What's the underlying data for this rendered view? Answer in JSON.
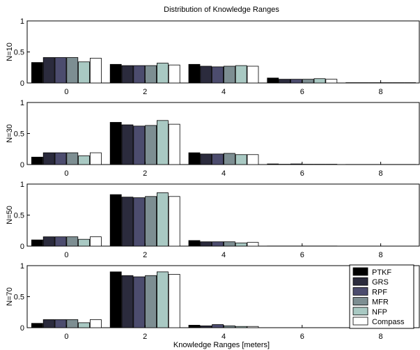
{
  "chart_data": {
    "type": "bar",
    "title": "Distribution of Knowledge Ranges",
    "xlabel": "Knowledge Ranges [meters]",
    "categories": [
      "0",
      "2",
      "4",
      "6",
      "8"
    ],
    "ylim": [
      0,
      1
    ],
    "yticks": [
      "0",
      "0.5",
      "1"
    ],
    "grid": false,
    "legend_position": "bottom-right",
    "series": [
      {
        "name": "PTKF",
        "color": "#000000"
      },
      {
        "name": "GRS",
        "color": "#2b2b3d"
      },
      {
        "name": "RPF",
        "color": "#4c4c6e"
      },
      {
        "name": "MFR",
        "color": "#7d8e92"
      },
      {
        "name": "NFP",
        "color": "#a9c9c3"
      },
      {
        "name": "Compass",
        "color": "#ffffff"
      }
    ],
    "panels": [
      {
        "ylabel": "N=10",
        "values": [
          [
            0.33,
            0.41,
            0.41,
            0.41,
            0.34,
            0.4
          ],
          [
            0.3,
            0.28,
            0.28,
            0.28,
            0.32,
            0.29
          ],
          [
            0.3,
            0.27,
            0.26,
            0.27,
            0.28,
            0.27
          ],
          [
            0.08,
            0.06,
            0.06,
            0.06,
            0.07,
            0.06
          ],
          [
            0.005,
            0.005,
            0.005,
            0.005,
            0.005,
            0.005
          ]
        ]
      },
      {
        "ylabel": "N=30",
        "values": [
          [
            0.12,
            0.19,
            0.19,
            0.19,
            0.14,
            0.19
          ],
          [
            0.68,
            0.64,
            0.62,
            0.63,
            0.71,
            0.65
          ],
          [
            0.19,
            0.17,
            0.17,
            0.18,
            0.16,
            0.16
          ],
          [
            0.01,
            0.005,
            0.01,
            0.005,
            0.005,
            0.005
          ],
          [
            0.002,
            0.002,
            0.002,
            0.002,
            0.002,
            0.002
          ]
        ]
      },
      {
        "ylabel": "N=50",
        "values": [
          [
            0.1,
            0.15,
            0.15,
            0.15,
            0.11,
            0.15
          ],
          [
            0.83,
            0.79,
            0.78,
            0.8,
            0.86,
            0.8
          ],
          [
            0.09,
            0.07,
            0.07,
            0.07,
            0.05,
            0.06
          ],
          [
            0.002,
            0.002,
            0.002,
            0.002,
            0.002,
            0.002
          ],
          [
            0.0,
            0.0,
            0.0,
            0.0,
            0.0,
            0.0
          ]
        ]
      },
      {
        "ylabel": "N=70",
        "values": [
          [
            0.07,
            0.13,
            0.13,
            0.13,
            0.08,
            0.13
          ],
          [
            0.9,
            0.84,
            0.82,
            0.84,
            0.9,
            0.86
          ],
          [
            0.04,
            0.03,
            0.05,
            0.03,
            0.02,
            0.02
          ],
          [
            0.0,
            0.0,
            0.0,
            0.0,
            0.0,
            0.0
          ],
          [
            0.0,
            0.0,
            0.0,
            0.0,
            0.0,
            0.0
          ]
        ]
      }
    ]
  }
}
